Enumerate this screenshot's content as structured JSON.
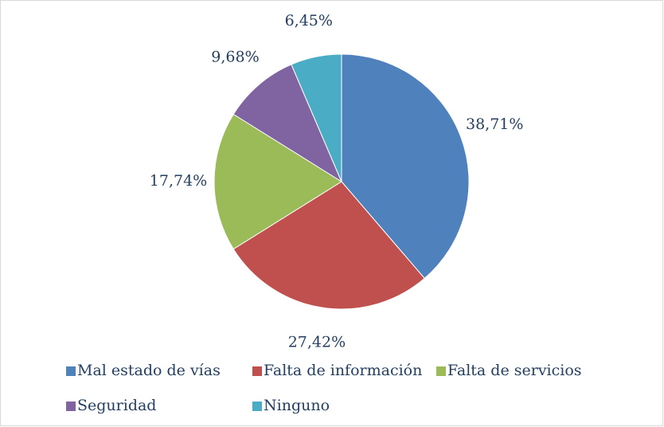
{
  "chart_data": {
    "type": "pie",
    "categories": [
      "Mal estado de vías",
      "Falta de información",
      "Falta de servicios",
      "Seguridad",
      "Ninguno"
    ],
    "values": [
      38.71,
      27.42,
      17.74,
      9.68,
      6.45
    ],
    "value_labels": [
      "38,71%",
      "27,42%",
      "17,74%",
      "9,68%",
      "6,45%"
    ],
    "colors": [
      "#4f81bd",
      "#c0504d",
      "#9bbb59",
      "#8064a2",
      "#4bacc6"
    ],
    "legend": "bottom"
  }
}
